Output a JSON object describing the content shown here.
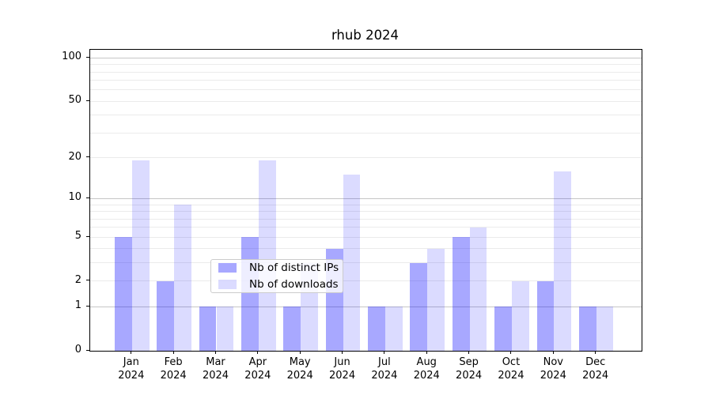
{
  "chart_data": {
    "type": "bar",
    "title": "rhub 2024",
    "categories": [
      "Jan",
      "Feb",
      "Mar",
      "Apr",
      "May",
      "Jun",
      "Jul",
      "Aug",
      "Sep",
      "Oct",
      "Nov",
      "Dec"
    ],
    "x_tick_second_line": "2024",
    "series": [
      {
        "name": "Nb of distinct IPs",
        "color": "rgba(0,0,255,0.34)",
        "color_on_white": "#a9a9fb",
        "values": [
          5,
          2,
          1,
          5,
          1,
          4,
          1,
          3,
          5,
          1,
          2,
          1
        ]
      },
      {
        "name": "Nb of downloads",
        "color": "rgba(0,0,255,0.14)",
        "color_on_white": "#dcdcfb",
        "values": [
          19,
          9,
          1,
          19,
          3,
          15,
          1,
          4,
          6,
          2,
          16,
          1
        ]
      }
    ],
    "yscale": "log1p",
    "ylim": [
      0,
      114
    ],
    "yticks": [
      0,
      1,
      2,
      5,
      10,
      20,
      50,
      100
    ],
    "grid": {
      "major_values": [
        1,
        10,
        100
      ],
      "minor_values": [
        2,
        3,
        4,
        5,
        6,
        7,
        8,
        9,
        20,
        30,
        40,
        50,
        60,
        70,
        80,
        90
      ],
      "major_color": "#c6c6c6",
      "minor_color": "#ebebeb"
    },
    "legend": {
      "position": "inside-bottom-center-left",
      "items": [
        "Nb of distinct IPs",
        "Nb of downloads"
      ]
    },
    "xlabel": "",
    "ylabel": ""
  },
  "axis_colors": {
    "spine": "#000000",
    "tick_text": "#000000"
  }
}
